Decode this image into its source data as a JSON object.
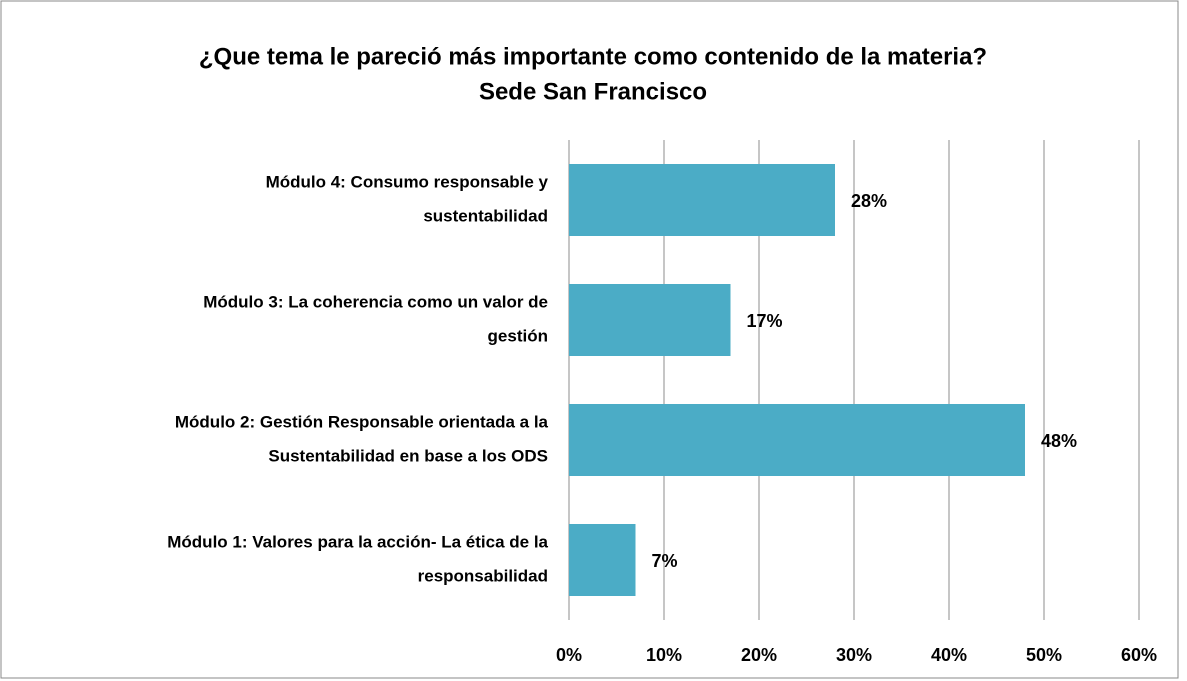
{
  "chart_data": {
    "type": "bar",
    "orientation": "horizontal",
    "title": "¿Que tema le pareció más importante como contenido de la materia?",
    "subtitle": "Sede San Francisco",
    "categories": [
      [
        "Módulo 4: Consumo responsable y",
        "sustentabilidad"
      ],
      [
        "Módulo 3:  La coherencia como un valor de",
        "gestión"
      ],
      [
        "Módulo 2: Gestión Responsable orientada a la",
        "Sustentabilidad en base a los ODS"
      ],
      [
        "Módulo 1: Valores para la acción- La ética de la",
        "responsabilidad"
      ]
    ],
    "values": [
      28,
      17,
      48,
      7
    ],
    "value_labels": [
      "28%",
      "17%",
      "48%",
      "7%"
    ],
    "color": "#4bacc6",
    "xlim": [
      0,
      60
    ],
    "xticks": [
      {
        "value": 0,
        "label": "0%"
      },
      {
        "value": 10,
        "label": "10%"
      },
      {
        "value": 20,
        "label": "20%"
      },
      {
        "value": 30,
        "label": "30%"
      },
      {
        "value": 40,
        "label": "40%"
      },
      {
        "value": 50,
        "label": "50%"
      },
      {
        "value": 60,
        "label": "60%"
      }
    ],
    "grid": true
  }
}
